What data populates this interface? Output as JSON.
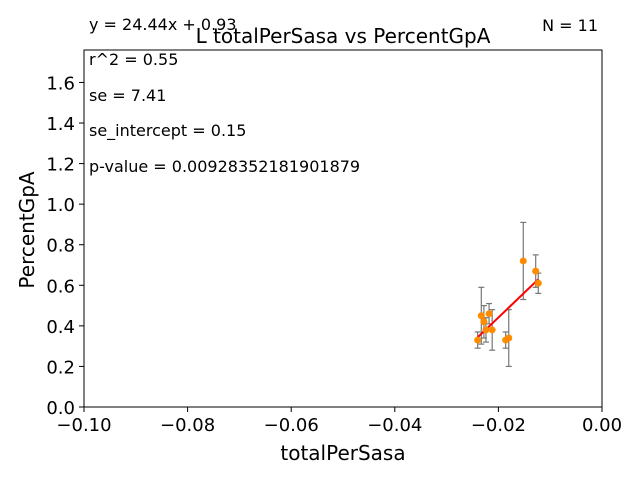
{
  "chart_data": {
    "type": "scatter",
    "title": "L totalPerSasa vs PercentGpA",
    "xlabel": "totalPerSasa",
    "ylabel": "PercentGpA",
    "xlim": [
      -0.1,
      0.0
    ],
    "ylim": [
      0.0,
      1.76
    ],
    "xticks": [
      -0.1,
      -0.08,
      -0.06,
      -0.04,
      -0.02,
      0.0
    ],
    "xtick_labels": [
      "−0.10",
      "−0.08",
      "−0.06",
      "−0.04",
      "−0.02",
      "0.00"
    ],
    "yticks": [
      0.0,
      0.2,
      0.4,
      0.6,
      0.8,
      1.0,
      1.2,
      1.4,
      1.6
    ],
    "ytick_labels": [
      "0.0",
      "0.2",
      "0.4",
      "0.6",
      "0.8",
      "1.0",
      "1.2",
      "1.4",
      "1.6"
    ],
    "grid": false,
    "annotations": [
      "y = 24.44x + 0.93",
      "r^2 = 0.55",
      "se = 7.41",
      "se_intercept = 0.15",
      "p-value = 0.00928352181901879"
    ],
    "count_label": "N = 11",
    "points": [
      {
        "x": -0.024,
        "y": 0.33,
        "err": 0.04
      },
      {
        "x": -0.0233,
        "y": 0.45,
        "err": 0.14
      },
      {
        "x": -0.0228,
        "y": 0.42,
        "err": 0.08
      },
      {
        "x": -0.0224,
        "y": 0.38,
        "err": 0.06
      },
      {
        "x": -0.0218,
        "y": 0.46,
        "err": 0.05
      },
      {
        "x": -0.0212,
        "y": 0.38,
        "err": 0.1
      },
      {
        "x": -0.0186,
        "y": 0.33,
        "err": 0.04
      },
      {
        "x": -0.018,
        "y": 0.34,
        "err": 0.14
      },
      {
        "x": -0.0152,
        "y": 0.72,
        "err": 0.19
      },
      {
        "x": -0.0128,
        "y": 0.67,
        "err": 0.08
      },
      {
        "x": -0.0123,
        "y": 0.61,
        "err": 0.05
      }
    ],
    "fit": {
      "slope": 24.44,
      "intercept": 0.93,
      "x_range": [
        -0.024,
        -0.0123
      ]
    },
    "colors": {
      "points": "#ff8c00",
      "fit_line": "#ff0000",
      "error_bars": "#777777",
      "axes": "#000000"
    }
  }
}
